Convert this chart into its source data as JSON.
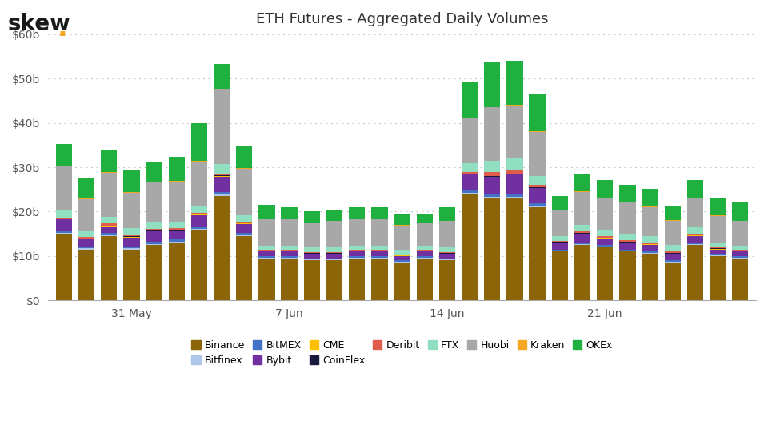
{
  "title": "ETH Futures - Aggregated Daily Volumes",
  "xlabel_ticks": [
    "31 May",
    "7 Jun",
    "14 Jun",
    "21 Jun"
  ],
  "xlabel_tick_positions": [
    3,
    10,
    17,
    24
  ],
  "background_color": "#ffffff",
  "grid_color": "#c8c8c8",
  "exchanges": [
    "Binance",
    "Bitfinex",
    "BitMEX",
    "Bybit",
    "CME",
    "CoinFlex",
    "Deribit",
    "FTX",
    "Huobi",
    "Kraken",
    "OKEx"
  ],
  "colors": {
    "Binance": "#8B6508",
    "Bitfinex": "#aec6e8",
    "BitMEX": "#4472c4",
    "Bybit": "#7030a0",
    "CME": "#ffc000",
    "CoinFlex": "#1a1a3e",
    "Deribit": "#e05c4b",
    "FTX": "#90dfc0",
    "Huobi": "#a8a8a8",
    "Kraken": "#f5a623",
    "OKEx": "#20b040"
  },
  "data": {
    "Binance": [
      15.0,
      11.5,
      14.5,
      11.5,
      12.5,
      13.0,
      16.0,
      23.5,
      14.5,
      9.5,
      9.5,
      9.0,
      9.0,
      9.5,
      9.5,
      8.5,
      9.5,
      9.0,
      24.0,
      23.0,
      23.0,
      21.0,
      11.0,
      12.5,
      12.0,
      11.0,
      10.5,
      8.5,
      12.5,
      10.0,
      9.5
    ],
    "Bitfinex": [
      0.2,
      0.2,
      0.2,
      0.2,
      0.2,
      0.2,
      0.2,
      0.3,
      0.2,
      0.2,
      0.2,
      0.2,
      0.2,
      0.2,
      0.2,
      0.2,
      0.2,
      0.2,
      0.3,
      0.3,
      0.3,
      0.3,
      0.2,
      0.2,
      0.2,
      0.2,
      0.2,
      0.2,
      0.2,
      0.2,
      0.2
    ],
    "BitMEX": [
      0.5,
      0.5,
      0.5,
      0.5,
      0.5,
      0.5,
      0.5,
      0.6,
      0.5,
      0.3,
      0.3,
      0.3,
      0.3,
      0.3,
      0.3,
      0.3,
      0.3,
      0.3,
      0.5,
      0.5,
      0.5,
      0.5,
      0.3,
      0.3,
      0.3,
      0.3,
      0.3,
      0.3,
      0.3,
      0.3,
      0.3
    ],
    "Bybit": [
      2.5,
      1.5,
      1.5,
      2.0,
      2.5,
      2.0,
      2.5,
      3.5,
      2.0,
      1.0,
      1.0,
      1.0,
      1.0,
      1.0,
      1.0,
      1.0,
      1.0,
      1.0,
      3.5,
      4.0,
      4.5,
      3.5,
      1.5,
      2.0,
      1.5,
      1.5,
      1.5,
      1.5,
      1.5,
      1.0,
      1.0
    ],
    "CME": [
      0.1,
      0.1,
      0.1,
      0.1,
      0.1,
      0.1,
      0.1,
      0.15,
      0.1,
      0.1,
      0.1,
      0.1,
      0.1,
      0.1,
      0.1,
      0.1,
      0.1,
      0.1,
      0.1,
      0.1,
      0.1,
      0.1,
      0.1,
      0.1,
      0.1,
      0.1,
      0.1,
      0.1,
      0.1,
      0.1,
      0.1
    ],
    "CoinFlex": [
      0.1,
      0.1,
      0.1,
      0.1,
      0.1,
      0.1,
      0.1,
      0.1,
      0.1,
      0.1,
      0.1,
      0.1,
      0.1,
      0.1,
      0.1,
      0.1,
      0.1,
      0.1,
      0.1,
      0.1,
      0.1,
      0.1,
      0.1,
      0.1,
      0.1,
      0.1,
      0.1,
      0.1,
      0.1,
      0.1,
      0.1
    ],
    "Deribit": [
      0.3,
      0.4,
      0.4,
      0.4,
      0.3,
      0.4,
      0.4,
      0.5,
      0.3,
      0.2,
      0.2,
      0.2,
      0.2,
      0.2,
      0.2,
      0.2,
      0.2,
      0.2,
      0.5,
      1.0,
      1.0,
      0.5,
      0.2,
      0.3,
      0.3,
      0.3,
      0.3,
      0.3,
      0.3,
      0.3,
      0.2
    ],
    "FTX": [
      1.5,
      1.5,
      1.5,
      1.5,
      1.5,
      1.5,
      1.5,
      2.0,
      1.5,
      1.0,
      1.0,
      1.0,
      1.0,
      1.0,
      1.0,
      1.0,
      1.0,
      1.0,
      2.0,
      2.5,
      2.5,
      2.0,
      1.0,
      1.5,
      1.5,
      1.5,
      1.5,
      1.5,
      1.5,
      1.0,
      1.0
    ],
    "Huobi": [
      10.0,
      7.0,
      10.0,
      8.0,
      9.0,
      9.0,
      10.0,
      17.0,
      10.5,
      6.0,
      6.0,
      5.5,
      6.0,
      6.0,
      6.0,
      5.5,
      5.0,
      6.0,
      10.0,
      12.0,
      12.0,
      10.0,
      6.0,
      7.5,
      7.0,
      7.0,
      6.5,
      5.5,
      6.5,
      6.0,
      5.5
    ],
    "Kraken": [
      0.1,
      0.1,
      0.1,
      0.1,
      0.1,
      0.1,
      0.1,
      0.1,
      0.1,
      0.1,
      0.1,
      0.1,
      0.1,
      0.1,
      0.1,
      0.1,
      0.1,
      0.1,
      0.1,
      0.1,
      0.1,
      0.1,
      0.1,
      0.1,
      0.1,
      0.1,
      0.1,
      0.1,
      0.1,
      0.1,
      0.1
    ],
    "OKEx": [
      5.0,
      4.5,
      5.0,
      5.0,
      4.5,
      5.5,
      8.5,
      5.5,
      5.0,
      3.0,
      2.5,
      2.5,
      2.5,
      2.5,
      2.5,
      2.5,
      2.0,
      3.0,
      8.0,
      10.0,
      10.0,
      8.5,
      3.0,
      4.0,
      4.0,
      4.0,
      4.0,
      3.0,
      4.0,
      4.0,
      4.0
    ]
  },
  "n_bars": 31,
  "logo_dot_color": "#f5a623"
}
